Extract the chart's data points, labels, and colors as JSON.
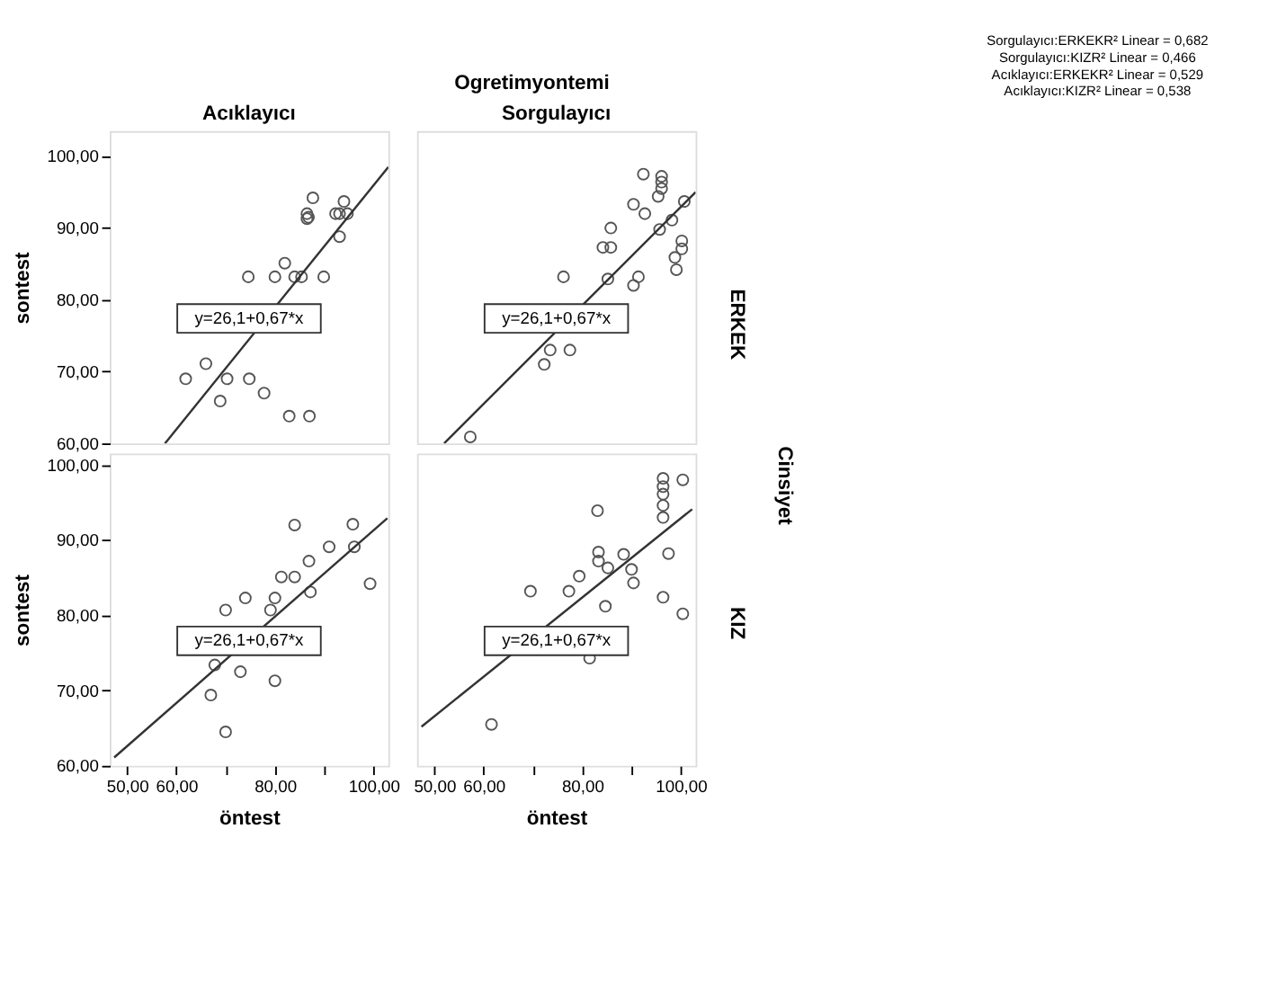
{
  "chart_data": [
    {
      "type": "scatter",
      "title": "Acıklayıcı",
      "ylabel": "sontest",
      "xlim": [
        46.5,
        103
      ],
      "ylim": [
        60,
        103.5
      ],
      "yticks": [
        {
          "value": 60,
          "label": "60,00"
        },
        {
          "value": 70,
          "label": "70,00"
        },
        {
          "value": 80,
          "label": "80,00"
        },
        {
          "value": 90,
          "label": "90,00"
        },
        {
          "value": 100,
          "label": "100,00"
        }
      ],
      "tick_labels": "y",
      "grid": false,
      "line_style": "solid",
      "series": [
        {
          "type": "scatter",
          "marker": "circle",
          "color": "#555555",
          "x": [
            87.7,
            86.5,
            86.5,
            86.8,
            92.3,
            94,
            93.1,
            94.7,
            93.1,
            82,
            74.6,
            80,
            84,
            85.4,
            89.9,
            66,
            61.9,
            70.3,
            74.8,
            68.9,
            77.8,
            82.9,
            87
          ],
          "values": [
            94.2,
            92,
            91.3,
            91.5,
            92,
            93.7,
            92,
            92,
            88.8,
            85.1,
            83.2,
            83.2,
            83.2,
            83.2,
            83.2,
            71.1,
            69,
            69,
            69,
            65.9,
            67,
            63.8,
            63.8
          ]
        },
        {
          "type": "line",
          "marker": "none",
          "color": "#333333",
          "x": [
            57.7,
            103
          ],
          "values": [
            60,
            98.5
          ]
        }
      ],
      "annotations": [
        "Ogretimyontemi",
        "Sorgulayıcı:ERKEKR² Linear = 0,682",
        "Sorgulayıcı:KIZR² Linear = 0,466",
        "Acıklayıcı:ERKEKR² Linear = 0,529",
        "Acıklayıcı:KIZR² Linear = 0,538",
        "y=26,1+0,67*x"
      ]
    },
    {
      "type": "scatter",
      "title": "Sorgulayıcı",
      "xlim": [
        46.5,
        103
      ],
      "ylim": [
        60,
        103.5
      ],
      "tick_labels": false,
      "grid": false,
      "line_style": "solid",
      "series": [
        {
          "type": "scatter",
          "marker": "circle",
          "color": "#555555",
          "x": [
            92.4,
            96.1,
            96.1,
            96.1,
            95.4,
            100.7,
            90.4,
            92.7,
            95.7,
            98.2,
            85.8,
            84.2,
            85.8,
            100.2,
            100.2,
            98.8,
            99.1,
            76.2,
            85.2,
            91.4,
            90.4,
            73.5,
            77.5,
            72.3,
            57.3
          ],
          "values": [
            97.5,
            97.2,
            96.4,
            95.5,
            94.4,
            93.7,
            93.3,
            92,
            89.8,
            91.1,
            90,
            87.3,
            87.3,
            88.2,
            87.1,
            85.9,
            84.2,
            83.2,
            82.9,
            83.2,
            82,
            73,
            73,
            71,
            60.9
          ]
        },
        {
          "type": "line",
          "marker": "none",
          "color": "#333333",
          "x": [
            52,
            103
          ],
          "values": [
            60,
            95
          ]
        }
      ],
      "annotations": [
        "ERKEK",
        "y=26,1+0,67*x"
      ]
    },
    {
      "type": "scatter",
      "xlabel": "öntest",
      "ylabel": "sontest",
      "xlim": [
        46.5,
        103
      ],
      "ylim": [
        60,
        101.5
      ],
      "xticks": [
        {
          "value": 50,
          "label": "50,00"
        },
        {
          "value": 60,
          "label": "60,00"
        },
        {
          "value": 70,
          "label": null
        },
        {
          "value": 80,
          "label": "80,00"
        },
        {
          "value": 90,
          "label": null
        },
        {
          "value": 100,
          "label": "100,00"
        }
      ],
      "yticks": [
        {
          "value": 60,
          "label": "60,00"
        },
        {
          "value": 70,
          "label": "70,00"
        },
        {
          "value": 80,
          "label": "80,00"
        },
        {
          "value": 90,
          "label": "90,00"
        },
        {
          "value": 100,
          "label": "100,00"
        }
      ],
      "grid": false,
      "line_style": "solid",
      "series": [
        {
          "type": "scatter",
          "marker": "circle",
          "color": "#555555",
          "x": [
            84,
            95.8,
            91,
            96.1,
            86.9,
            81.3,
            84,
            87.2,
            99.3,
            74,
            80,
            70,
            79.1,
            67.8,
            73,
            80,
            67,
            70
          ],
          "values": [
            92,
            92.1,
            89.1,
            89.1,
            87.2,
            85.1,
            85.1,
            83.1,
            84.2,
            82.3,
            82.3,
            80.7,
            80.7,
            73.4,
            72.5,
            71.3,
            69.4,
            64.5
          ]
        },
        {
          "type": "line",
          "marker": "none",
          "color": "#333333",
          "x": [
            47.4,
            102.8
          ],
          "values": [
            61.1,
            92.9
          ]
        }
      ],
      "annotations": [
        "y=26,1+0,67*x"
      ]
    },
    {
      "type": "scatter",
      "xlabel": "öntest",
      "xlim": [
        46.5,
        103
      ],
      "ylim": [
        60,
        101.5
      ],
      "xticks": [
        {
          "value": 50,
          "label": "50,00"
        },
        {
          "value": 60,
          "label": "60,00"
        },
        {
          "value": 70,
          "label": null
        },
        {
          "value": 80,
          "label": "80,00"
        },
        {
          "value": 90,
          "label": null
        },
        {
          "value": 100,
          "label": "100,00"
        }
      ],
      "tick_labels": "x",
      "grid": false,
      "line_style": "solid",
      "series": [
        {
          "type": "scatter",
          "marker": "circle",
          "color": "#555555",
          "x": [
            96.4,
            96.4,
            96.4,
            96.4,
            96.4,
            100.4,
            83.1,
            83.3,
            83.3,
            88.4,
            85.2,
            90,
            90.4,
            97.5,
            79.4,
            77.3,
            69.5,
            84.7,
            96.4,
            100.4,
            81.5,
            61.6
          ],
          "values": [
            98.2,
            97.1,
            96.1,
            94.6,
            93,
            98,
            93.9,
            88.4,
            87.2,
            88.1,
            86.3,
            86.1,
            84.3,
            88.2,
            85.2,
            83.2,
            83.2,
            81.2,
            82.4,
            80.2,
            74.3,
            65.5
          ]
        },
        {
          "type": "line",
          "marker": "none",
          "color": "#333333",
          "x": [
            47.4,
            102.3
          ],
          "values": [
            65.2,
            94.1
          ]
        }
      ],
      "annotations": [
        "KIZ",
        "Cinsiyet",
        "y=26,1+0,67*x"
      ]
    }
  ]
}
